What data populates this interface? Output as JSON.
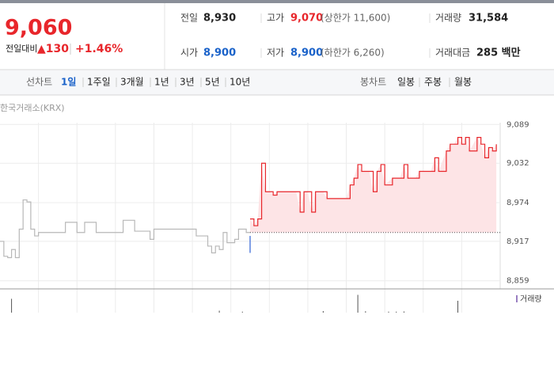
{
  "quote": {
    "price": "9,060",
    "change_label": "전일대비",
    "change": "▲130",
    "rate": "+1.46%"
  },
  "info": [
    [
      {
        "label": "전일",
        "value": "8,930",
        "color": "#222222"
      },
      {
        "label": "고가",
        "value": "9,070",
        "color": "#e8262b",
        "note": "(상한가 11,600)"
      },
      {
        "label": "거래량",
        "value": "31,584",
        "color": "#222222"
      }
    ],
    [
      {
        "label": "시가",
        "value": "8,900",
        "color": "#1a62c9"
      },
      {
        "label": "저가",
        "value": "8,900",
        "color": "#1a62c9",
        "note": "(하한가 6,260)"
      },
      {
        "label": "거래대금",
        "value": "285 백만",
        "color": "#222222"
      }
    ]
  ],
  "tabs": {
    "line_label": "선차트",
    "line_periods": [
      "1일",
      "1주일",
      "3개월",
      "1년",
      "3년",
      "5년",
      "10년"
    ],
    "active": 0,
    "candle_label": "봉차트",
    "candle_periods": [
      "일봉",
      "주봉",
      "월봉"
    ]
  },
  "chart_data": {
    "type": "line",
    "source": "한국거래소(KRX)",
    "xlim": [
      0,
      130
    ],
    "ylim": [
      8847,
      9101
    ],
    "yticks": [
      {
        "value": 9089,
        "label": "9,089"
      },
      {
        "value": 9032,
        "label": "9,032"
      },
      {
        "value": 8974,
        "label": "8,974"
      },
      {
        "value": 8917,
        "label": "8,917"
      },
      {
        "value": 8859,
        "label": "8,859"
      }
    ],
    "base_line": 8930,
    "fill": "#fde4e6",
    "series": [
      {
        "color": "#b8b8b8",
        "x": [
          0,
          1,
          2,
          3,
          4,
          5,
          6,
          7,
          8,
          9,
          10,
          16,
          17,
          19,
          20,
          21,
          22,
          24,
          25,
          31,
          32,
          34,
          35,
          38,
          39,
          40,
          50,
          51,
          53,
          54,
          55,
          56,
          57,
          58,
          59,
          61,
          62,
          64,
          65
        ],
        "values": [
          8917,
          8895,
          8893,
          8905,
          8893,
          8935,
          8978,
          8975,
          8935,
          8925,
          8930,
          8930,
          8945,
          8945,
          8930,
          8930,
          8945,
          8945,
          8930,
          8930,
          8948,
          8948,
          8932,
          8932,
          8920,
          8935,
          8935,
          8925,
          8925,
          8910,
          8900,
          8910,
          8905,
          8930,
          8915,
          8920,
          8935,
          8930,
          8930
        ]
      },
      {
        "color": "#2f62d6",
        "x": [
          65,
          65
        ],
        "values": [
          8900,
          8925
        ]
      },
      {
        "color": "#e8262b",
        "filled": true,
        "x": [
          65,
          66,
          67,
          68,
          69,
          70,
          71,
          72,
          77,
          78,
          79,
          80,
          81,
          82,
          84,
          85,
          90,
          91,
          92,
          93,
          94,
          96,
          97,
          98,
          99,
          100,
          102,
          104,
          105,
          106,
          108,
          109,
          112,
          113,
          114,
          116,
          117,
          118,
          119,
          120,
          121,
          122,
          124,
          125,
          126,
          127,
          128,
          129
        ],
        "values": [
          8950,
          8940,
          8950,
          9032,
          8990,
          8990,
          8985,
          8990,
          8990,
          8960,
          8990,
          8990,
          8960,
          8990,
          8990,
          8980,
          8980,
          9000,
          9010,
          9030,
          9020,
          9020,
          8990,
          9020,
          9030,
          9000,
          9010,
          9010,
          9030,
          9010,
          9010,
          9020,
          9020,
          9040,
          9020,
          9050,
          9060,
          9060,
          9070,
          9060,
          9070,
          9050,
          9070,
          9060,
          9040,
          9055,
          9050,
          9060
        ]
      }
    ],
    "volume": {
      "name": "거래량",
      "color": "#9a7fc2",
      "ylim": [
        0,
        10000
      ],
      "x": [
        3,
        57,
        63,
        84,
        93,
        95,
        101,
        103,
        105,
        119
      ],
      "values": [
        7000,
        1000,
        500,
        800,
        9000,
        700,
        500,
        500,
        600,
        6000
      ]
    }
  }
}
